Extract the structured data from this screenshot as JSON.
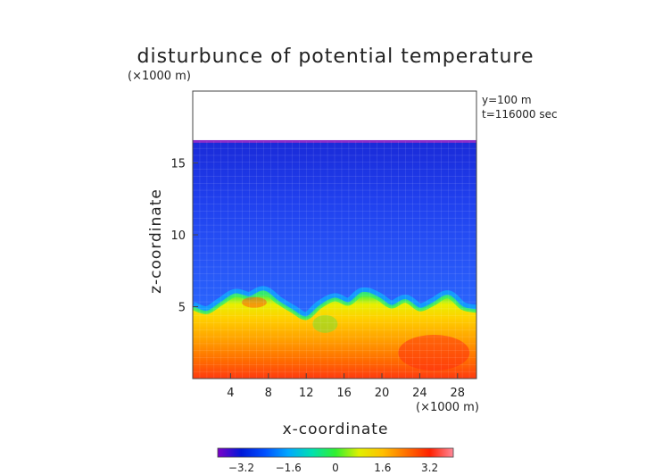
{
  "chart_data": {
    "type": "heatmap",
    "title": "disturbunce of potential temperature",
    "xlabel": "x-coordinate",
    "ylabel": "z-coordinate",
    "x_unit": "(×1000 m)",
    "z_unit": "(×1000 m)",
    "info": [
      "y=100 m",
      "t=116000 sec"
    ],
    "xlim": [
      0,
      30
    ],
    "ylim": [
      0,
      20
    ],
    "x_ticks": [
      4,
      8,
      12,
      16,
      20,
      24,
      28
    ],
    "y_ticks": [
      5,
      10,
      15
    ],
    "domain_top_km": 16.5,
    "colorbar": {
      "range": [
        -4.0,
        4.0
      ],
      "ticks": [
        "−3.2",
        "−1.6",
        "0",
        "1.6",
        "3.2"
      ],
      "tick_values": [
        -3.2,
        -1.6,
        0,
        1.6,
        3.2
      ],
      "colors": [
        "#7b00c8",
        "#0018d8",
        "#0050ff",
        "#00a8ff",
        "#00e0b0",
        "#30f030",
        "#e0f000",
        "#ffc000",
        "#ff7000",
        "#ff2000",
        "#ff8898"
      ]
    },
    "interface_profile": {
      "x": [
        0.0,
        1.5,
        3.0,
        4.5,
        6.0,
        7.5,
        9.0,
        10.5,
        12.0,
        13.5,
        15.0,
        16.5,
        18.0,
        19.5,
        21.0,
        22.5,
        24.0,
        25.5,
        27.0,
        28.5,
        30.0
      ],
      "z": [
        4.9,
        4.6,
        5.2,
        5.8,
        5.6,
        6.0,
        5.3,
        4.7,
        4.2,
        5.0,
        5.5,
        5.2,
        5.9,
        5.6,
        5.0,
        5.4,
        4.8,
        5.2,
        5.7,
        4.9,
        4.7
      ]
    },
    "warm_core_value": 3.2,
    "upper_value": -2.6
  }
}
